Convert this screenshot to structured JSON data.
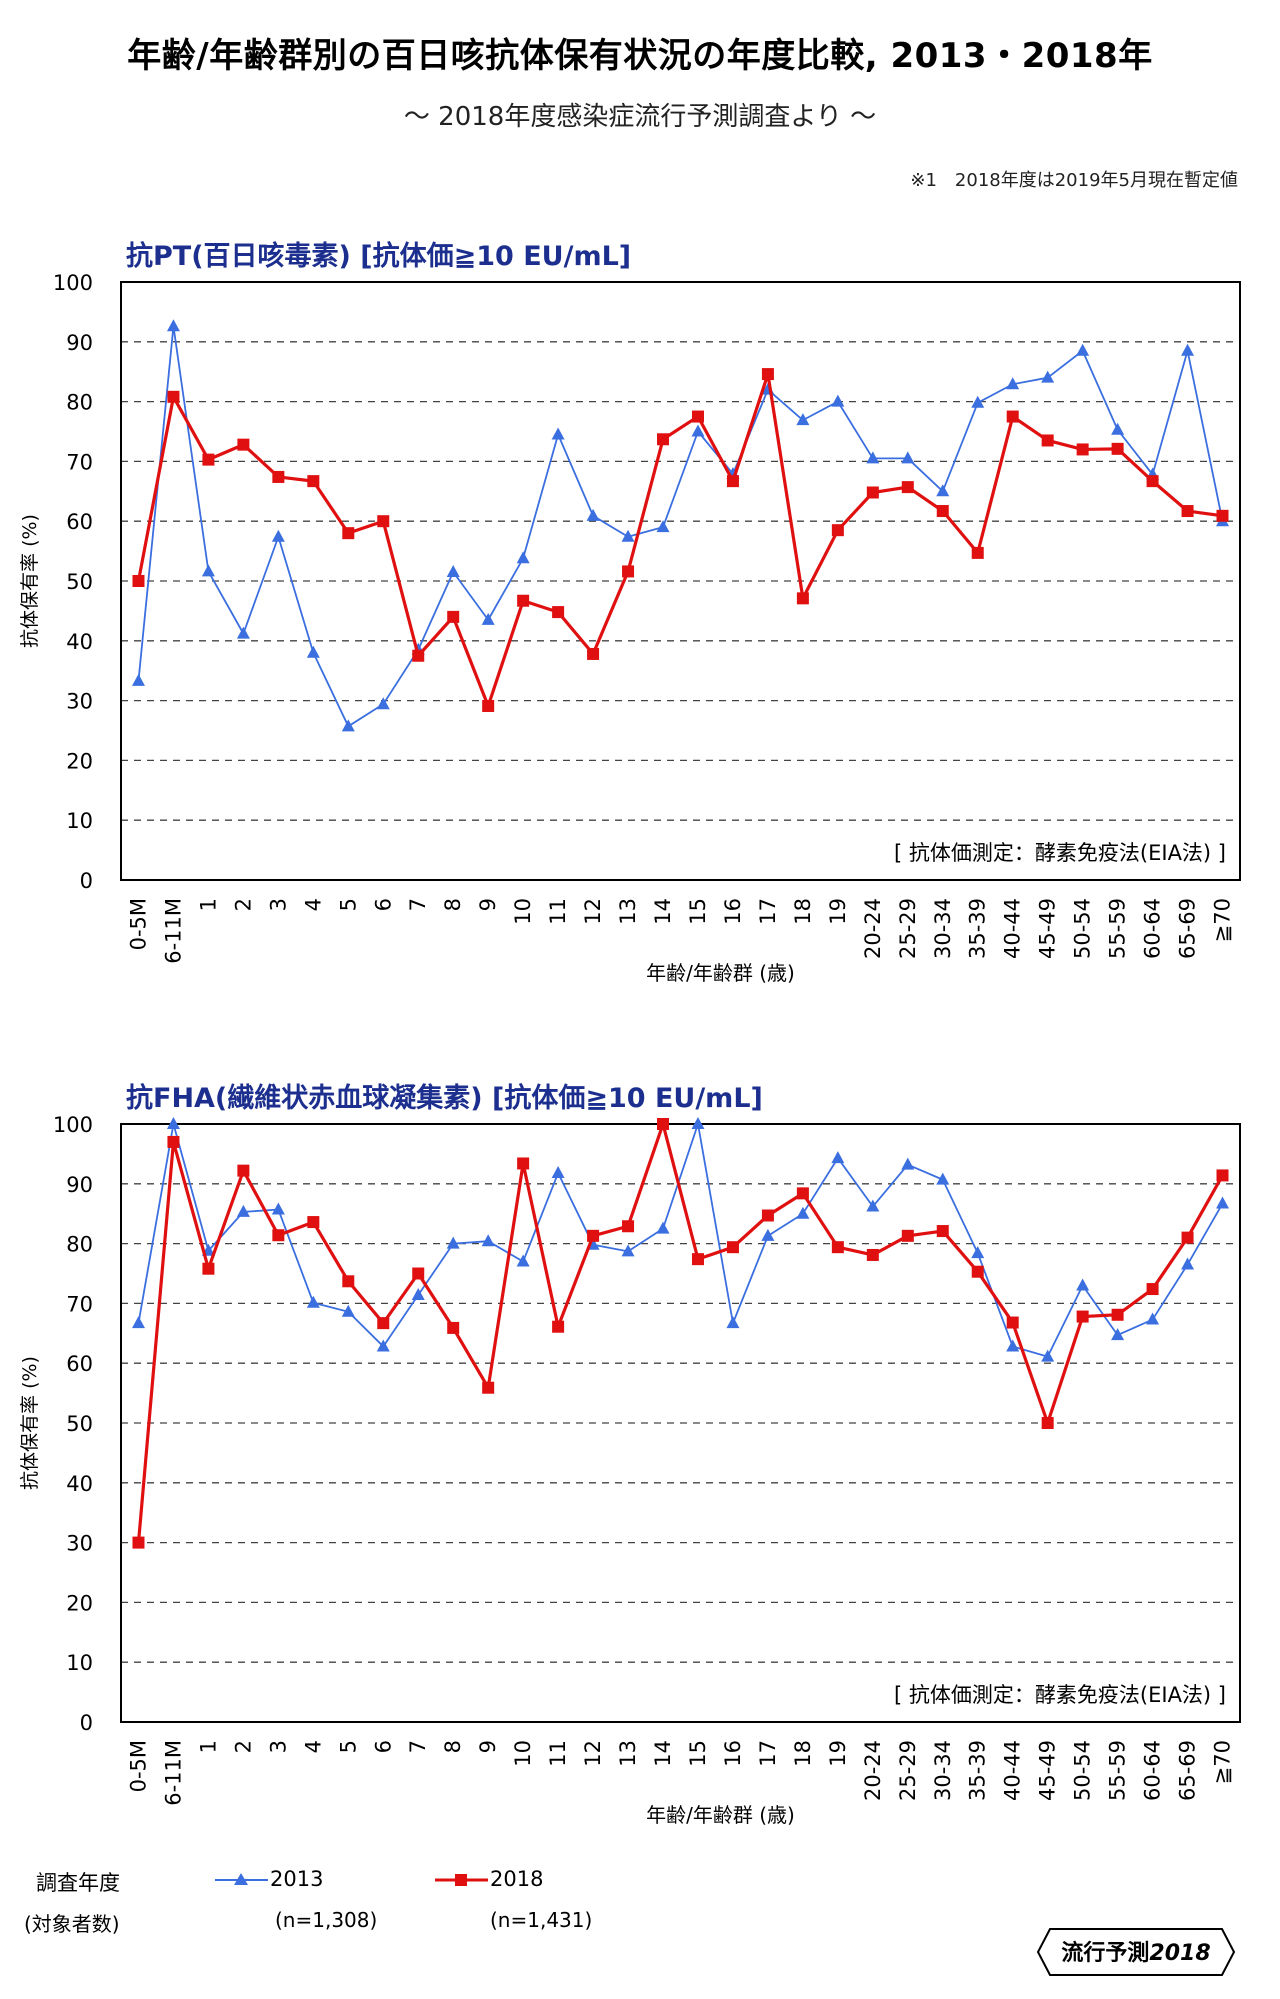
{
  "title": "年齢/年齢群別の百日咳抗体保有状況の年度比較, 2013・2018年",
  "subtitle": "～ 2018年度感染症流行予測調査より ～",
  "note": "※1　2018年度は2019年5月現在暫定値",
  "colors": {
    "s2013": "#3b6fe0",
    "s2018": "#e01010",
    "panel_title": "#1c2f8f"
  },
  "legend": {
    "label": "調査年度",
    "sublabel": "(対象者数)",
    "items": [
      {
        "name": "2013",
        "n": "(n=1,308)",
        "marker": "triangle",
        "color": "#3b6fe0"
      },
      {
        "name": "2018",
        "n": "(n=1,431)",
        "marker": "square",
        "color": "#e01010"
      }
    ]
  },
  "badge": {
    "prefix": "流行予測",
    "year": "2018"
  },
  "chart_data": [
    {
      "type": "line",
      "title": "抗PT(百日咳毒素) [抗体価≧10 EU/mL]",
      "xlabel": "年齢/年齢群 (歳)",
      "ylabel": "抗体保有率 (%)",
      "ylim": [
        0,
        100
      ],
      "yticks": [
        0,
        10,
        20,
        30,
        40,
        50,
        60,
        70,
        80,
        90,
        100
      ],
      "grid": true,
      "method_note": "[ 抗体価測定：酵素免疫法(EIA法) ]",
      "categories": [
        "0-5M",
        "6-11M",
        "1",
        "2",
        "3",
        "4",
        "5",
        "6",
        "7",
        "8",
        "9",
        "10",
        "11",
        "12",
        "13",
        "14",
        "15",
        "16",
        "17",
        "18",
        "19",
        "20-24",
        "25-29",
        "30-34",
        "35-39",
        "40-44",
        "45-49",
        "50-54",
        "55-59",
        "60-64",
        "65-69",
        "≧70"
      ],
      "series": [
        {
          "name": "2013",
          "values": [
            33.3,
            92.6,
            51.6,
            41.2,
            57.4,
            38.0,
            25.7,
            29.4,
            38.5,
            51.5,
            43.5,
            53.8,
            74.5,
            60.9,
            57.4,
            59.0,
            75.0,
            67.9,
            82.0,
            76.9,
            80.0,
            70.5,
            70.5,
            65.0,
            79.8,
            82.9,
            84.0,
            88.5,
            75.3,
            67.8,
            88.5,
            60.0
          ]
        },
        {
          "name": "2018",
          "values": [
            50.0,
            80.8,
            70.3,
            72.8,
            67.4,
            66.7,
            58.0,
            60.0,
            37.5,
            44.0,
            29.1,
            46.7,
            44.8,
            37.8,
            51.6,
            73.7,
            77.5,
            66.7,
            84.6,
            47.1,
            58.5,
            64.8,
            65.7,
            61.7,
            54.7,
            77.5,
            73.5,
            72.0,
            72.1,
            66.7,
            61.7,
            60.9
          ]
        }
      ]
    },
    {
      "type": "line",
      "title": "抗FHA(繊維状赤血球凝集素) [抗体価≧10 EU/mL]",
      "xlabel": "年齢/年齢群 (歳)",
      "ylabel": "抗体保有率 (%)",
      "ylim": [
        0,
        100
      ],
      "yticks": [
        0,
        10,
        20,
        30,
        40,
        50,
        60,
        70,
        80,
        90,
        100
      ],
      "grid": true,
      "method_note": "[ 抗体価測定：酵素免疫法(EIA法) ]",
      "categories": [
        "0-5M",
        "6-11M",
        "1",
        "2",
        "3",
        "4",
        "5",
        "6",
        "7",
        "8",
        "9",
        "10",
        "11",
        "12",
        "13",
        "14",
        "15",
        "16",
        "17",
        "18",
        "19",
        "20-24",
        "25-29",
        "30-34",
        "35-39",
        "40-44",
        "45-49",
        "50-54",
        "55-59",
        "60-64",
        "65-69",
        "≧70"
      ],
      "series": [
        {
          "name": "2013",
          "values": [
            66.7,
            100.0,
            78.8,
            85.3,
            85.7,
            70.1,
            68.6,
            62.8,
            71.4,
            80.0,
            80.4,
            77.0,
            91.8,
            79.8,
            78.7,
            82.5,
            100.0,
            66.7,
            81.3,
            85.0,
            94.3,
            86.2,
            93.2,
            90.7,
            78.4,
            62.8,
            61.1,
            73.0,
            64.7,
            67.3,
            76.5,
            86.7
          ]
        },
        {
          "name": "2018",
          "values": [
            30.0,
            97.0,
            75.8,
            92.2,
            81.4,
            83.6,
            73.7,
            66.7,
            75.0,
            65.9,
            55.9,
            93.4,
            66.1,
            81.3,
            82.9,
            100.0,
            77.4,
            79.4,
            84.7,
            88.4,
            79.4,
            78.1,
            81.3,
            82.1,
            75.3,
            66.8,
            50.0,
            67.8,
            68.1,
            72.4,
            81.0,
            91.4
          ]
        }
      ]
    }
  ]
}
